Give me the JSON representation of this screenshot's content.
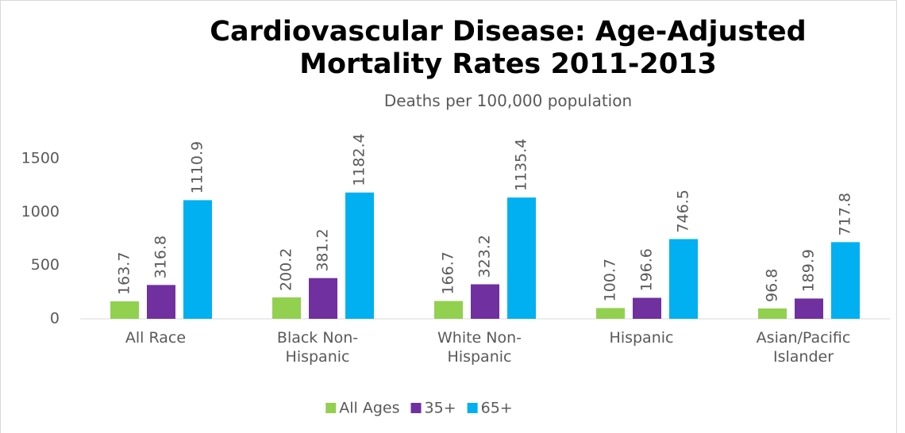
{
  "chart_data": {
    "type": "bar",
    "title": "Cardiovascular Disease: Age-Adjusted Mortality Rates 2011-2013",
    "subtitle": "Deaths per 100,000 population",
    "categories": [
      "All Race",
      "Black Non-Hispanic",
      "White Non-Hispanic",
      "Hispanic",
      "Asian/Pacific Islander"
    ],
    "series": [
      {
        "name": "All Ages",
        "color": "#92d050",
        "values": [
          163.7,
          200.2,
          166.7,
          100.7,
          96.8
        ]
      },
      {
        "name": "35+",
        "color": "#7030a0",
        "values": [
          316.8,
          381.2,
          323.2,
          196.6,
          189.9
        ]
      },
      {
        "name": "65+",
        "color": "#00b0f0",
        "values": [
          1110.9,
          1182.4,
          1135.4,
          746.5,
          717.8
        ]
      }
    ],
    "ylim": [
      0,
      1500
    ],
    "yticks": [
      0,
      500,
      1000,
      1500
    ],
    "grid": false,
    "legend": "bottom"
  }
}
